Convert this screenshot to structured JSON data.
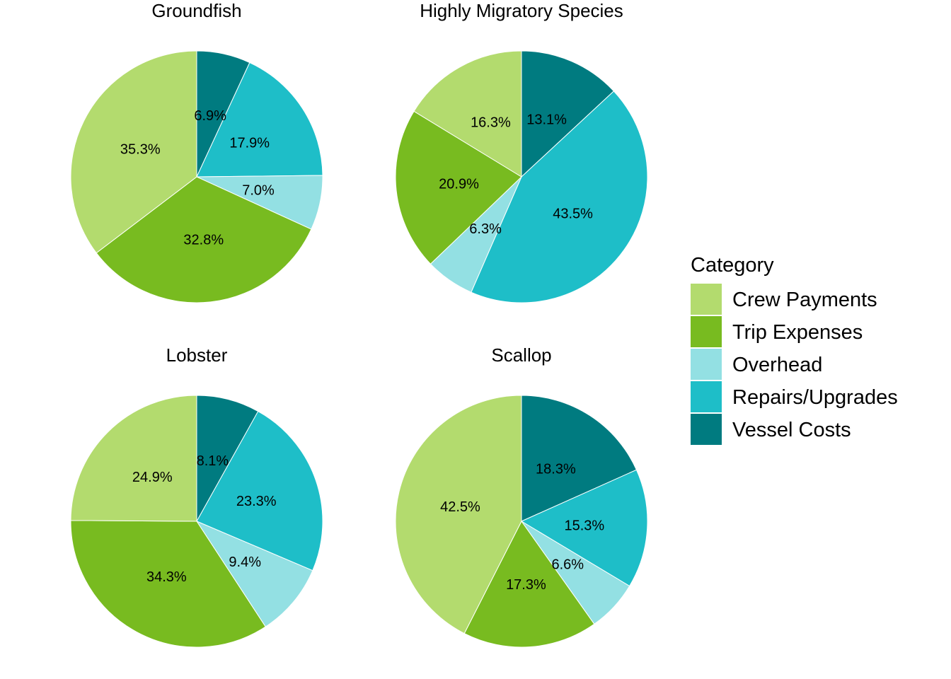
{
  "chart_data": {
    "type": "pie",
    "legend": {
      "title": "Category",
      "placement": "right",
      "entries": [
        {
          "name": "Crew Payments",
          "color": "#b3db6e"
        },
        {
          "name": "Trip Expenses",
          "color": "#78bb20"
        },
        {
          "name": "Overhead",
          "color": "#93e0e3"
        },
        {
          "name": "Repairs/Upgrades",
          "color": "#1ebec8"
        },
        {
          "name": "Vessel Costs",
          "color": "#007b80"
        }
      ]
    },
    "charts": [
      {
        "title": "Groundfish",
        "slices": [
          {
            "category": "Vessel Costs",
            "value": 6.9,
            "label": "6.9%"
          },
          {
            "category": "Repairs/Upgrades",
            "value": 17.9,
            "label": "17.9%"
          },
          {
            "category": "Overhead",
            "value": 7.0,
            "label": "7.0%"
          },
          {
            "category": "Trip Expenses",
            "value": 32.8,
            "label": "32.8%"
          },
          {
            "category": "Crew Payments",
            "value": 35.3,
            "label": "35.3%"
          }
        ]
      },
      {
        "title": "Highly Migratory Species",
        "slices": [
          {
            "category": "Vessel Costs",
            "value": 13.1,
            "label": "13.1%"
          },
          {
            "category": "Repairs/Upgrades",
            "value": 43.5,
            "label": "43.5%"
          },
          {
            "category": "Overhead",
            "value": 6.3,
            "label": "6.3%"
          },
          {
            "category": "Trip Expenses",
            "value": 20.9,
            "label": "20.9%"
          },
          {
            "category": "Crew Payments",
            "value": 16.3,
            "label": "16.3%"
          }
        ]
      },
      {
        "title": "Lobster",
        "slices": [
          {
            "category": "Vessel Costs",
            "value": 8.1,
            "label": "8.1%"
          },
          {
            "category": "Repairs/Upgrades",
            "value": 23.3,
            "label": "23.3%"
          },
          {
            "category": "Overhead",
            "value": 9.4,
            "label": "9.4%"
          },
          {
            "category": "Trip Expenses",
            "value": 34.3,
            "label": "34.3%"
          },
          {
            "category": "Crew Payments",
            "value": 24.9,
            "label": "24.9%"
          }
        ]
      },
      {
        "title": "Scallop",
        "slices": [
          {
            "category": "Vessel Costs",
            "value": 18.3,
            "label": "18.3%"
          },
          {
            "category": "Repairs/Upgrades",
            "value": 15.3,
            "label": "15.3%"
          },
          {
            "category": "Overhead",
            "value": 6.6,
            "label": "6.6%"
          },
          {
            "category": "Trip Expenses",
            "value": 17.3,
            "label": "17.3%"
          },
          {
            "category": "Crew Payments",
            "value": 42.5,
            "label": "42.5%"
          }
        ]
      }
    ]
  }
}
